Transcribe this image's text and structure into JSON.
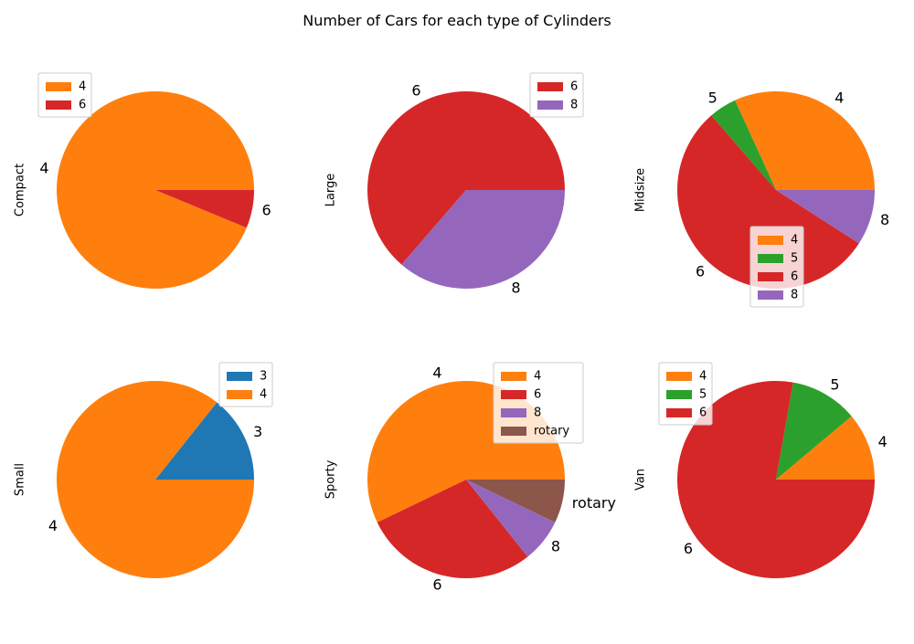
{
  "chart_data": {
    "title": "Number of Cars for each type of Cylinders",
    "type": "pie",
    "colors": {
      "3": "#1f77b4",
      "4": "#ff7f0e",
      "5": "#2ca02c",
      "6": "#d62728",
      "8": "#9467bd",
      "rotary": "#8c564b"
    },
    "subplots": [
      {
        "ylabel": "Compact",
        "legend_position": "upper-left",
        "slices": [
          {
            "label": "4",
            "value": 15
          },
          {
            "label": "6",
            "value": 1
          }
        ]
      },
      {
        "ylabel": "Large",
        "legend_position": "upper-right",
        "slices": [
          {
            "label": "6",
            "value": 7
          },
          {
            "label": "8",
            "value": 4
          }
        ]
      },
      {
        "ylabel": "Midsize",
        "legend_position": "lower-center",
        "slices": [
          {
            "label": "4",
            "value": 7
          },
          {
            "label": "5",
            "value": 1
          },
          {
            "label": "6",
            "value": 12
          },
          {
            "label": "8",
            "value": 2
          }
        ]
      },
      {
        "ylabel": "Small",
        "legend_position": "upper-right",
        "slices": [
          {
            "label": "3",
            "value": 3
          },
          {
            "label": "4",
            "value": 18
          }
        ]
      },
      {
        "ylabel": "Sporty",
        "legend_position": "upper-right",
        "slices": [
          {
            "label": "4",
            "value": 8
          },
          {
            "label": "6",
            "value": 4
          },
          {
            "label": "8",
            "value": 1
          },
          {
            "label": "rotary",
            "value": 1
          }
        ]
      },
      {
        "ylabel": "Van",
        "legend_position": "upper-left",
        "slices": [
          {
            "label": "4",
            "value": 1
          },
          {
            "label": "5",
            "value": 1
          },
          {
            "label": "6",
            "value": 7
          }
        ]
      }
    ]
  }
}
